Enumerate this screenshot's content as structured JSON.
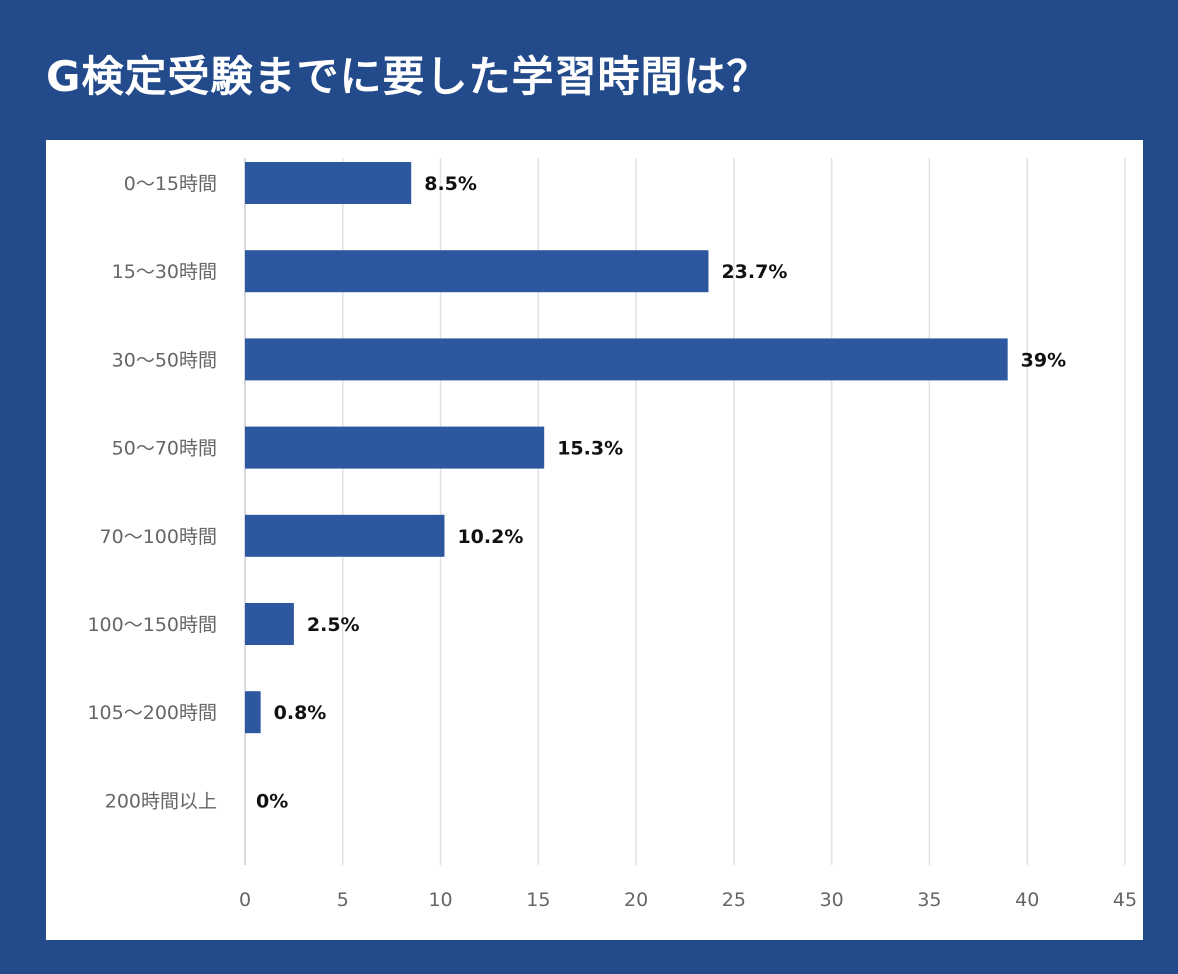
{
  "title": "G検定受験までに要した学習時間は？",
  "colors": {
    "background": "#234a8a",
    "panel": "#ffffff",
    "bar": "#2d58a0",
    "grid": "#dfe2e6",
    "axis": "#c8ccd2"
  },
  "chart_data": {
    "type": "bar",
    "orientation": "horizontal",
    "title": "G検定受験までに要した学習時間は？",
    "categories": [
      "0〜15時間",
      "15〜30時間",
      "30〜50時間",
      "50〜70時間",
      "70〜100時間",
      "100〜150時間",
      "105〜200時間",
      "200時間以上"
    ],
    "values": [
      8.5,
      23.7,
      39,
      15.3,
      10.2,
      2.5,
      0.8,
      0
    ],
    "data_labels": [
      "8.5%",
      "23.7%",
      "39%",
      "15.3%",
      "10.2%",
      "2.5%",
      "0.8%",
      "0%"
    ],
    "x_ticks": [
      "0",
      "5",
      "10",
      "15",
      "20",
      "25",
      "30",
      "35",
      "40",
      "45"
    ],
    "xlim": [
      0,
      45
    ],
    "xlabel": "",
    "ylabel": "",
    "grid": "vertical",
    "legend": "none"
  }
}
